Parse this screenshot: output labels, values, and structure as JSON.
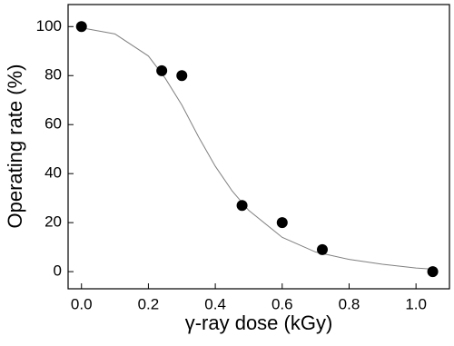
{
  "chart_data": {
    "type": "scatter",
    "x_label": "γ-ray dose (kGy)",
    "y_label": "Operating rate (%)",
    "series": [
      {
        "color": "#000000",
        "x": [
          0,
          0.24,
          0.3,
          0.48,
          0.6,
          0.72,
          1.05
        ],
        "values": [
          100,
          82,
          80,
          27,
          20,
          9,
          0
        ]
      }
    ],
    "curve": {
      "color": "#808080",
      "x": [
        0,
        0.1,
        0.2,
        0.25,
        0.3,
        0.35,
        0.4,
        0.45,
        0.5,
        0.6,
        0.7,
        0.8,
        0.9,
        1.0,
        1.05
      ],
      "values": [
        99.5,
        97,
        88,
        79,
        68,
        55,
        43,
        33,
        25,
        14,
        8,
        5,
        3,
        1.5,
        1
      ]
    },
    "xlim": [
      -0.04,
      1.1
    ],
    "ylim": [
      -7,
      109
    ],
    "xticks": [
      {
        "value": 0,
        "label": "0.0"
      },
      0.2,
      0.4,
      0.6,
      0.8,
      {
        "value": 1,
        "label": "1.0"
      }
    ],
    "yticks": [
      0,
      20,
      40,
      60,
      80,
      100
    ]
  }
}
